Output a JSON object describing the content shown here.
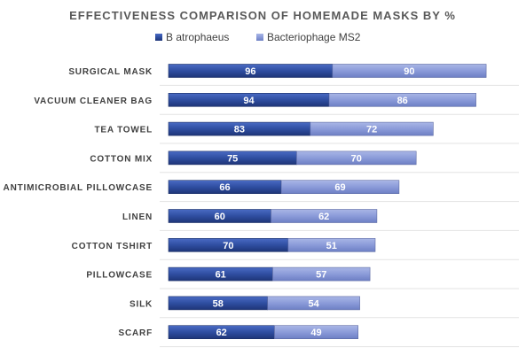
{
  "chart_data": {
    "type": "bar",
    "orientation": "horizontal",
    "stacked": true,
    "title": "EFFECTIVENESS COMPARISON OF HOMEMADE MASKS BY %",
    "categories": [
      "SURGICAL MASK",
      "VACUUM CLEANER BAG",
      "TEA TOWEL",
      "COTTON MIX",
      "ANTIMICROBIAL  PILLOWCASE",
      "LINEN",
      "COTTON TSHIRT",
      "PILLOWCASE",
      "SILK",
      "SCARF"
    ],
    "series": [
      {
        "name": "B atrophaeus",
        "values": [
          96,
          94,
          83,
          75,
          66,
          60,
          70,
          61,
          58,
          62
        ],
        "color": "#2F4EA1"
      },
      {
        "name": "Bacteriophage MS2",
        "values": [
          90,
          86,
          72,
          70,
          69,
          62,
          51,
          57,
          54,
          49
        ],
        "color": "#8B9BD9"
      }
    ],
    "legend_position": "top",
    "grid": "horizontal",
    "data_labels": true
  }
}
